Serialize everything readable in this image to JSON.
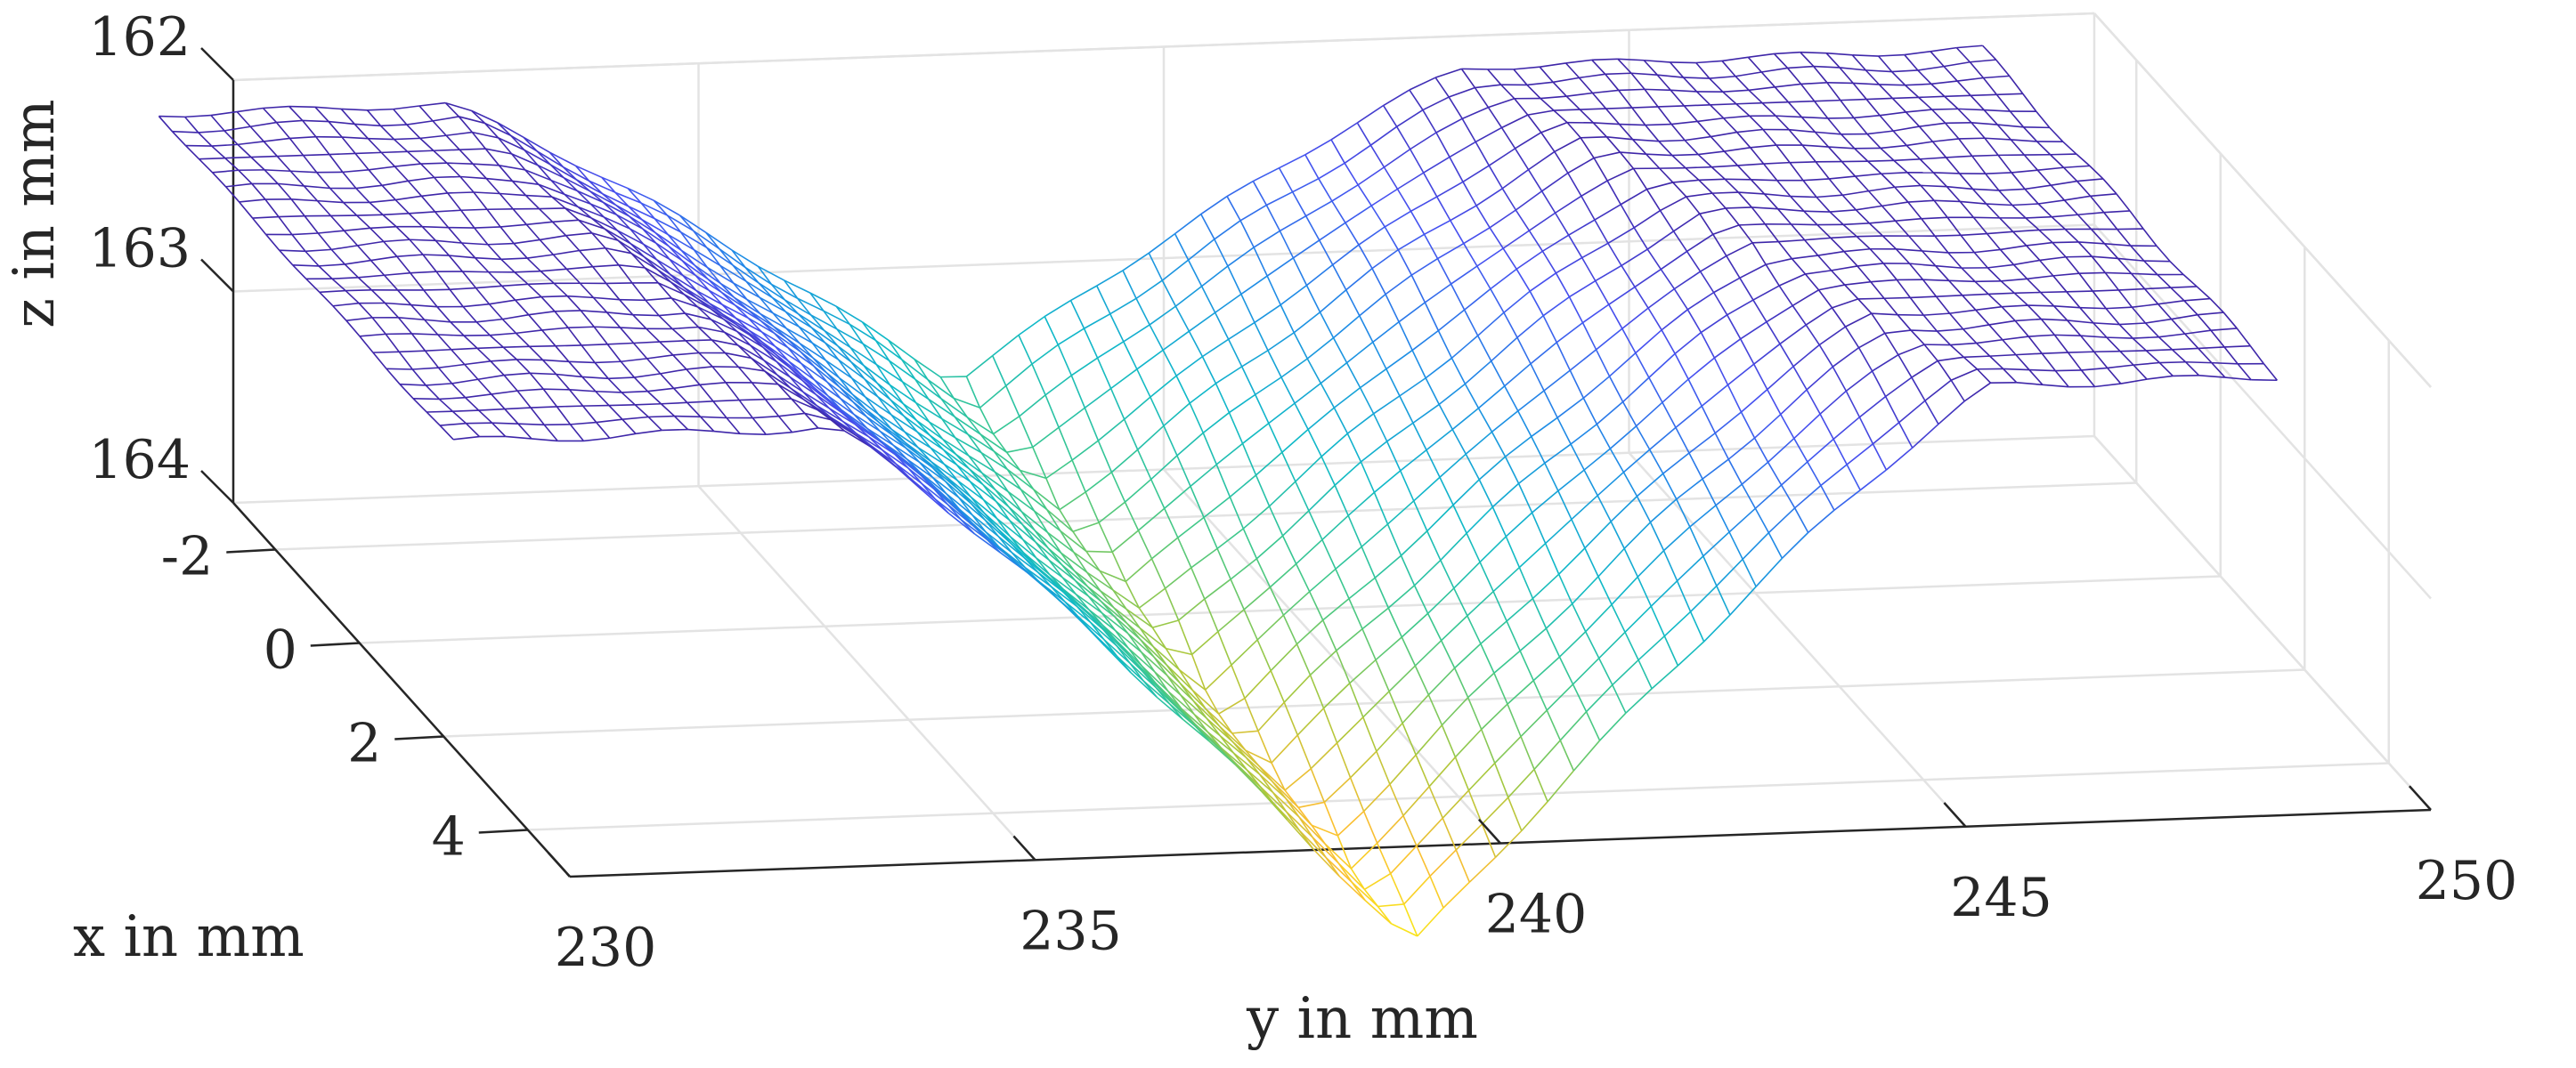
{
  "chart_data": {
    "type": "surface-mesh",
    "title": "",
    "xlabel": "x in mm",
    "ylabel": "y in mm",
    "zlabel": "z in mm",
    "xlim": [
      -3,
      5
    ],
    "ylim": [
      230,
      250
    ],
    "zlim": [
      162,
      164
    ],
    "z_reversed": true,
    "grid": true,
    "colormap": "parula",
    "x_ticks": [
      -2,
      0,
      2,
      4
    ],
    "y_ticks": [
      230,
      235,
      240,
      245,
      250
    ],
    "z_ticks": [
      162,
      163,
      164
    ],
    "x_tick_labels": [
      "-2",
      "0",
      "2",
      "4"
    ],
    "y_tick_labels": [
      "230",
      "235",
      "240",
      "245",
      "250"
    ],
    "z_tick_labels": [
      "162",
      "163",
      "164"
    ],
    "surface": {
      "description": "V-shaped groove measured profile",
      "x_range": [
        -3,
        4
      ],
      "y_range": [
        229.2,
        248.8
      ],
      "top_surface_z": 162.15,
      "groove_center_y": 238.5,
      "groove_half_width_mm": 5.5,
      "groove_bottom_z": 164.7,
      "groove_tilt_mm_per_mm": 0.25
    }
  }
}
